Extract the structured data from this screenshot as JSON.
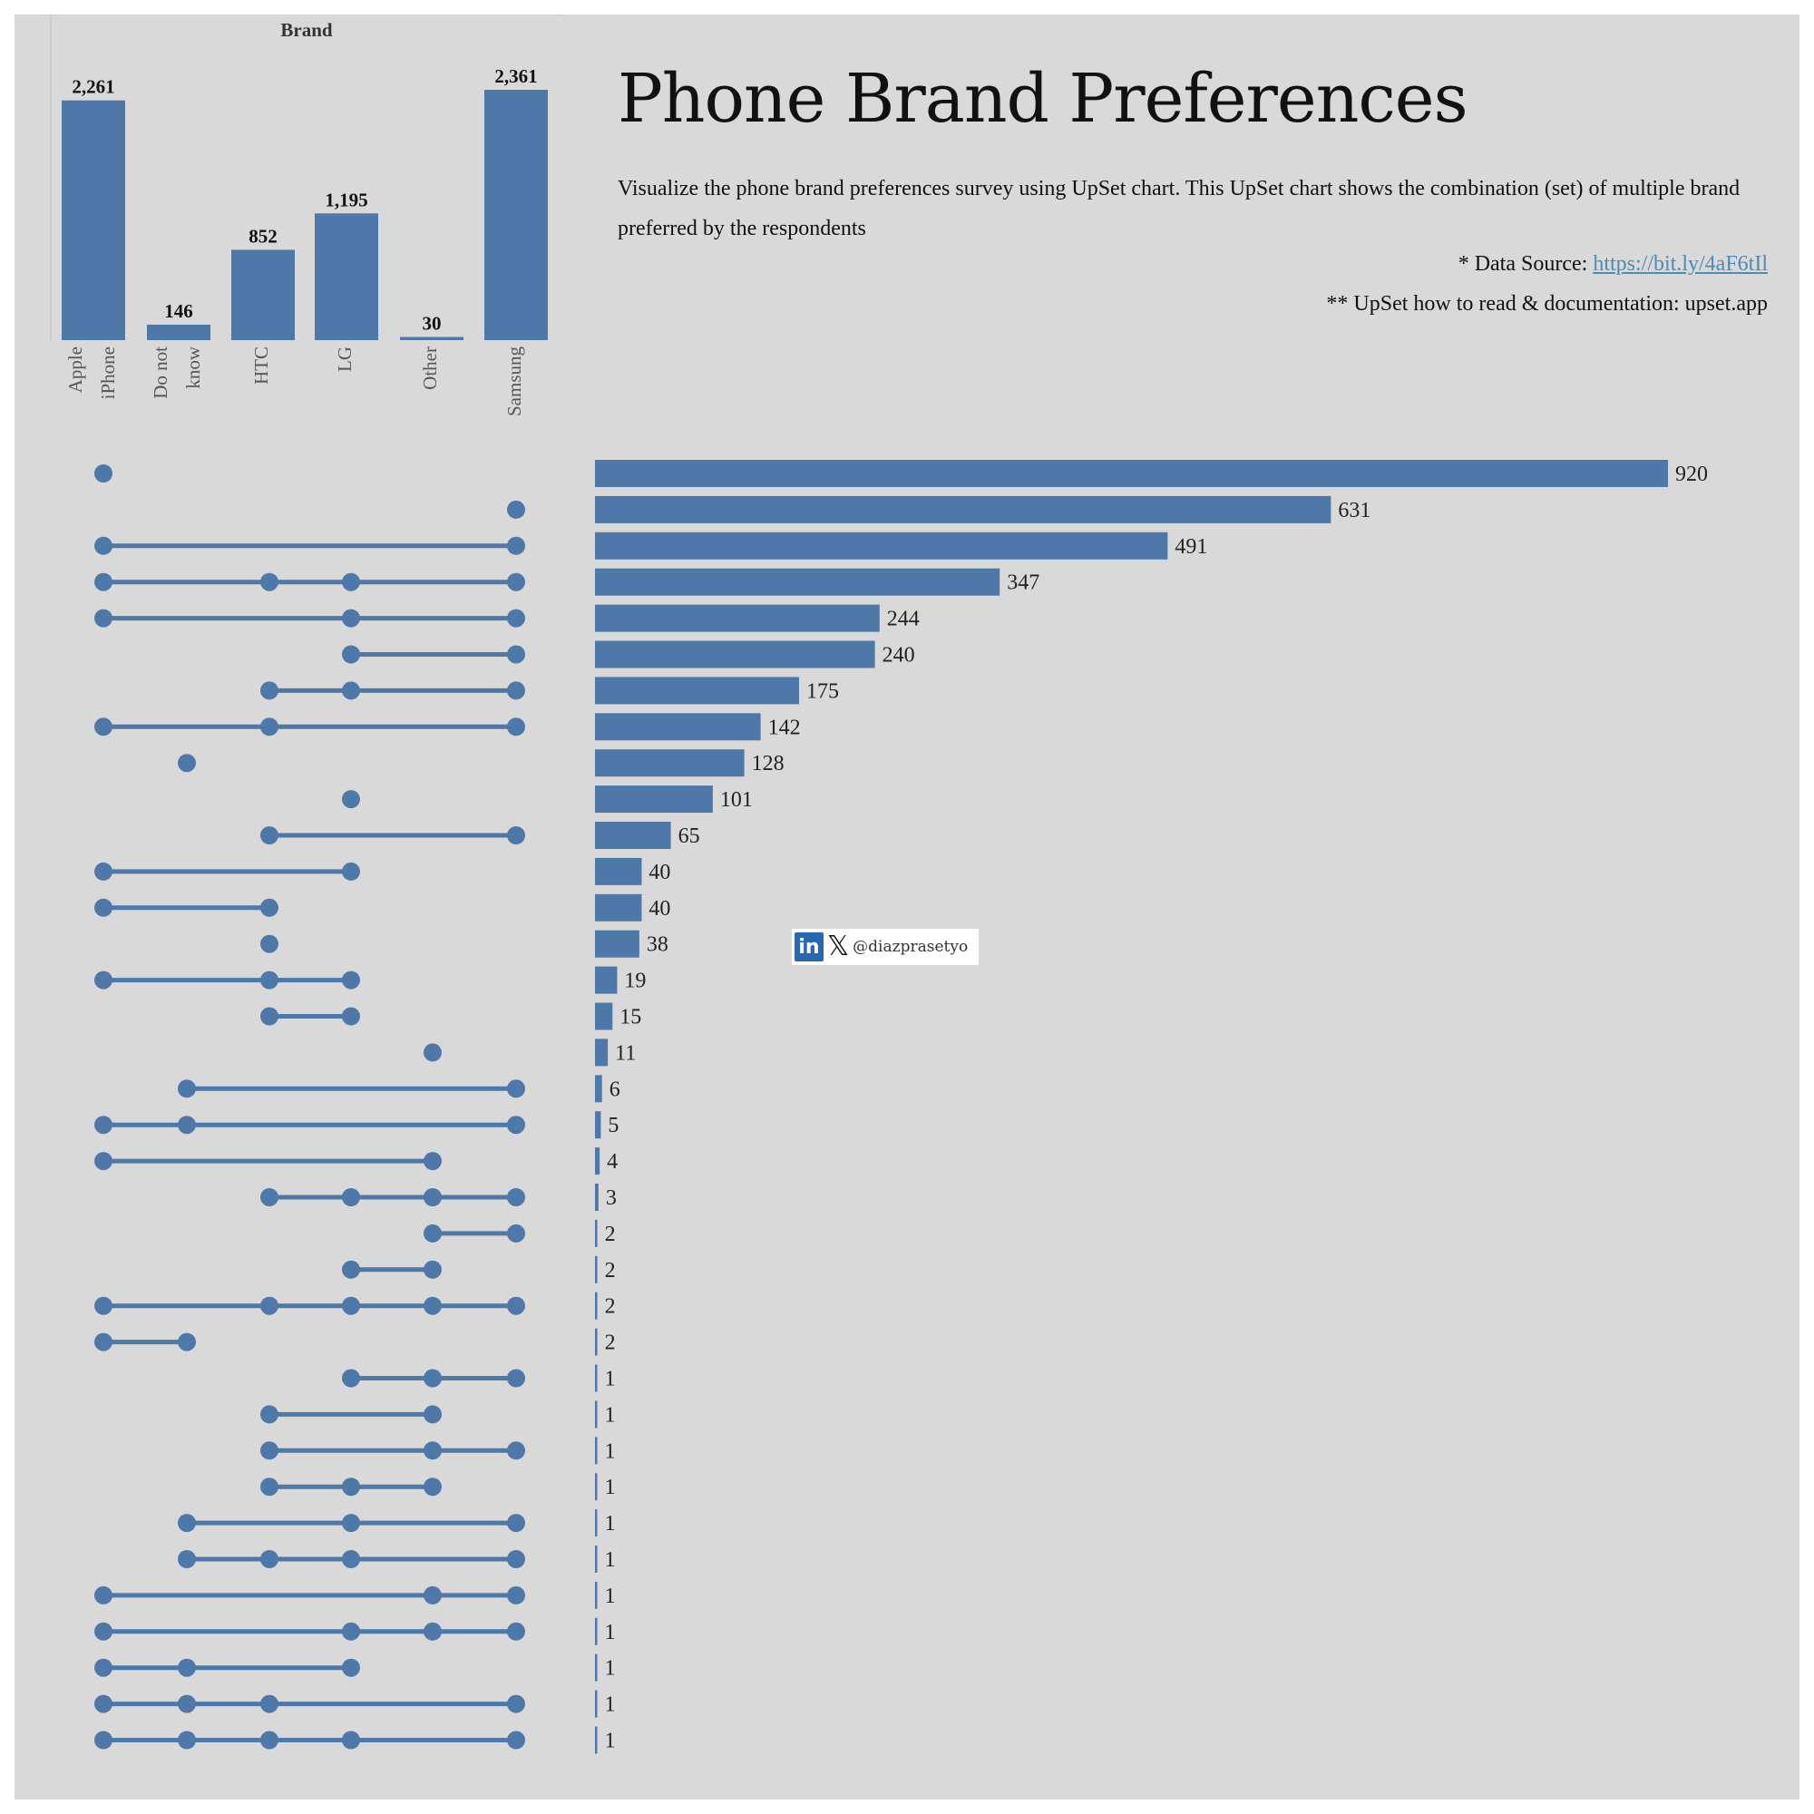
{
  "title": "Phone Brand Preferences",
  "description": "Visualize the phone brand preferences survey using UpSet chart. This UpSet chart shows the combination (set) of multiple brand preferred by the respondents",
  "source": {
    "prefix": "* Data Source: ",
    "link": "https://bit.ly/4aF6tIl"
  },
  "documentation": "** UpSet how to read & documentation: upset.app",
  "social": {
    "handle": "@diazprasetyo",
    "icons": [
      "linkedin-icon",
      "x-icon"
    ]
  },
  "colors": {
    "bar": "#4e78a8",
    "background": "#d9d9d9"
  },
  "chart_data": [
    {
      "type": "bar",
      "title": "Brand",
      "categories": [
        "Apple iPhone",
        "Do not know",
        "HTC",
        "LG",
        "Other",
        "Samsung"
      ],
      "category_lines": [
        [
          "Apple",
          "iPhone"
        ],
        [
          "Do not",
          "know"
        ],
        [
          "HTC"
        ],
        [
          "LG"
        ],
        [
          "Other"
        ],
        [
          "Samsung"
        ]
      ],
      "values": [
        2261,
        146,
        852,
        1195,
        30,
        2361
      ],
      "value_labels": [
        "2,261",
        "146",
        "852",
        "1,195",
        "30",
        "2,361"
      ]
    },
    {
      "type": "upset",
      "sets": [
        "Apple iPhone",
        "Do not know",
        "HTC",
        "LG",
        "Other",
        "Samsung"
      ],
      "combinations": [
        [
          0
        ],
        [
          5
        ],
        [
          0,
          5
        ],
        [
          0,
          2,
          3,
          5
        ],
        [
          0,
          3,
          5
        ],
        [
          3,
          5
        ],
        [
          2,
          3,
          5
        ],
        [
          0,
          2,
          5
        ],
        [
          1
        ],
        [
          3
        ],
        [
          2,
          5
        ],
        [
          0,
          3
        ],
        [
          0,
          2
        ],
        [
          2
        ],
        [
          0,
          2,
          3
        ],
        [
          2,
          3
        ],
        [
          4
        ],
        [
          1,
          5
        ],
        [
          0,
          1,
          5
        ],
        [
          0,
          4
        ],
        [
          2,
          3,
          4,
          5
        ],
        [
          4,
          5
        ],
        [
          3,
          4
        ],
        [
          0,
          2,
          3,
          4,
          5
        ],
        [
          0,
          1
        ],
        [
          3,
          4,
          5
        ],
        [
          2,
          4
        ],
        [
          2,
          4,
          5
        ],
        [
          2,
          3,
          4
        ],
        [
          1,
          3,
          5
        ],
        [
          1,
          2,
          3,
          5
        ],
        [
          0,
          4,
          5
        ],
        [
          0,
          3,
          4,
          5
        ],
        [
          0,
          1,
          3
        ],
        [
          0,
          1,
          2,
          5
        ],
        [
          0,
          1,
          2,
          3,
          5
        ]
      ],
      "values": [
        920,
        631,
        491,
        347,
        244,
        240,
        175,
        142,
        128,
        101,
        65,
        40,
        40,
        38,
        19,
        15,
        11,
        6,
        5,
        4,
        3,
        2,
        2,
        2,
        2,
        1,
        1,
        1,
        1,
        1,
        1,
        1,
        1,
        1,
        1,
        1
      ]
    }
  ]
}
